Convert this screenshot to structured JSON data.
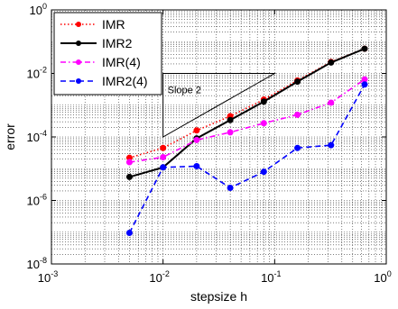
{
  "chart_data": {
    "type": "line",
    "xlabel": "stepsize h",
    "ylabel": "error",
    "xscale": "log",
    "yscale": "log",
    "xlim": [
      0.001,
      1
    ],
    "ylim": [
      1e-08,
      1
    ],
    "grid": true,
    "legend_position": "top-left",
    "x": [
      0.005,
      0.01,
      0.02,
      0.04,
      0.08,
      0.16,
      0.32,
      0.64
    ],
    "series": [
      {
        "name": "IMR",
        "color": "#ff0000",
        "line": "dotted",
        "marker": "circle",
        "values": [
          2.2e-05,
          4.5e-05,
          0.00016,
          0.00045,
          0.0015,
          0.006,
          0.023,
          0.06
        ]
      },
      {
        "name": "IMR2",
        "color": "#000000",
        "line": "solid",
        "marker": "circle",
        "values": [
          5.5e-06,
          1.1e-05,
          9e-05,
          0.00034,
          0.0013,
          0.0055,
          0.022,
          0.06
        ]
      },
      {
        "name": "IMR(4)",
        "color": "#ff00ff",
        "line": "dashdot",
        "marker": "circle",
        "values": [
          1.6e-05,
          2.3e-05,
          8e-05,
          0.00014,
          0.00027,
          0.0005,
          0.0012,
          0.0065
        ]
      },
      {
        "name": "IMR2(4)",
        "color": "#0000ff",
        "line": "dashed",
        "marker": "circle",
        "values": [
          9.5e-08,
          1.1e-05,
          1.2e-05,
          2.5e-06,
          8e-06,
          4.5e-05,
          5.5e-05,
          0.0045
        ]
      }
    ],
    "x_ticks": [
      {
        "base": "10",
        "exp": "-3",
        "value": 0.001
      },
      {
        "base": "10",
        "exp": "-2",
        "value": 0.01
      },
      {
        "base": "10",
        "exp": "-1",
        "value": 0.1
      },
      {
        "base": "10",
        "exp": "0",
        "value": 1
      }
    ],
    "y_ticks": [
      {
        "base": "10",
        "exp": "-8",
        "value": 1e-08
      },
      {
        "base": "10",
        "exp": "-6",
        "value": 1e-06
      },
      {
        "base": "10",
        "exp": "-4",
        "value": 0.0001
      },
      {
        "base": "10",
        "exp": "-2",
        "value": 0.01
      },
      {
        "base": "10",
        "exp": "0",
        "value": 1
      }
    ],
    "annotation": {
      "text": "Slope 2",
      "triangle": {
        "x0": 0.01,
        "x1": 0.1,
        "y_top": 0.01,
        "y_bottom": 0.0001
      }
    }
  }
}
